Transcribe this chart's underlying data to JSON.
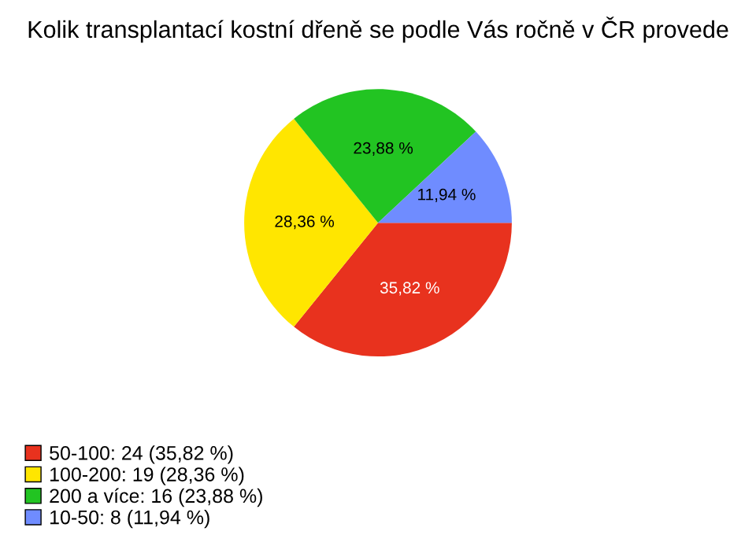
{
  "chart_data": {
    "type": "pie",
    "title": "Kolik transplantací kostní dřeně se podle Vás ročně v ČR provede",
    "categories": [
      "50-100: 24 (35,82 %)",
      "100-200: 19 (28,36 %)",
      "200 a více: 16 (23,88 %)",
      "10-50: 8 (11,94 %)"
    ],
    "values": [
      35.82,
      28.36,
      23.88,
      11.94
    ],
    "value_labels": [
      "35,82 %",
      "28,36 %",
      "23,88 %",
      "11,94 %"
    ],
    "colors": [
      "#e8321e",
      "#ffe600",
      "#22c422",
      "#6f8cff"
    ],
    "legend": "bottom left"
  }
}
